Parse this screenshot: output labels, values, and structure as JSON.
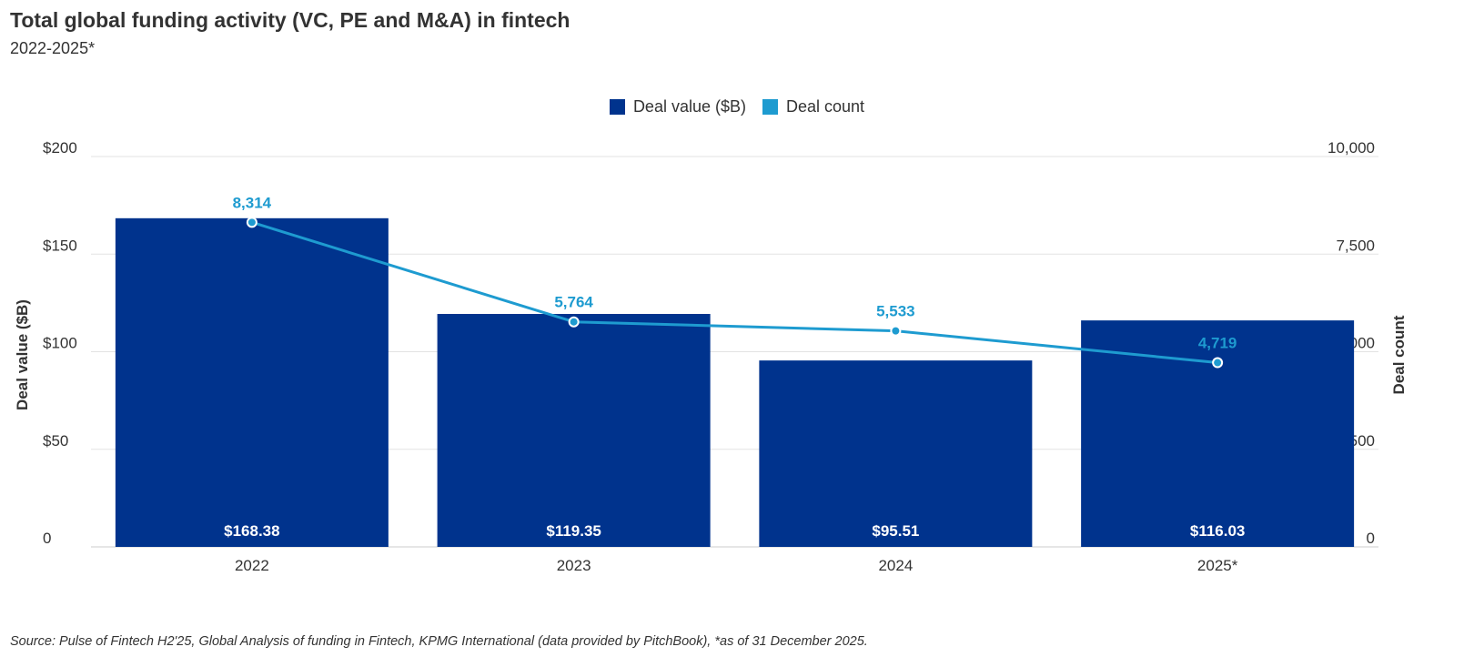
{
  "header": {
    "title": "Total global funding activity (VC, PE and M&A) in fintech",
    "subtitle": "2022-2025*"
  },
  "legend": {
    "items": [
      {
        "label": "Deal value ($B)",
        "color": "#00338D"
      },
      {
        "label": "Deal count",
        "color": "#1E9BD0"
      }
    ]
  },
  "footer": {
    "source": "Source: Pulse of Fintech H2'25, Global Analysis of funding in Fintech, KPMG International (data provided by PitchBook), *as of 31 December 2025."
  },
  "chart_data": {
    "type": "bar",
    "title": "Total global funding activity (VC, PE and M&A) in fintech",
    "subtitle": "2022-2025*",
    "categories": [
      "2022",
      "2023",
      "2024",
      "2025*"
    ],
    "series": [
      {
        "name": "Deal value ($B)",
        "type": "bar",
        "axis": "left",
        "color": "#00338D",
        "values": [
          168.38,
          119.35,
          95.51,
          116.03
        ],
        "labels": [
          "$168.38",
          "$119.35",
          "$95.51",
          "$116.03"
        ]
      },
      {
        "name": "Deal count",
        "type": "line",
        "axis": "right",
        "color": "#1E9BD0",
        "values": [
          8314,
          5764,
          5533,
          4719
        ],
        "labels": [
          "8,314",
          "5,764",
          "5,533",
          "4,719"
        ]
      }
    ],
    "y_left": {
      "label": "Deal value ($B)",
      "ylim": [
        0,
        200
      ],
      "ticks": [
        0,
        50,
        100,
        150,
        200
      ],
      "tick_labels": [
        "0",
        "$50",
        "$100",
        "$150",
        "$200"
      ]
    },
    "y_right": {
      "label": "Deal count",
      "ylim": [
        0,
        10000
      ],
      "ticks": [
        0,
        2500,
        5000,
        7500,
        10000
      ],
      "tick_labels": [
        "0",
        "2,500",
        "5,000",
        "7,500",
        "10,000"
      ]
    },
    "grid": true,
    "legend_position": "top-center"
  }
}
